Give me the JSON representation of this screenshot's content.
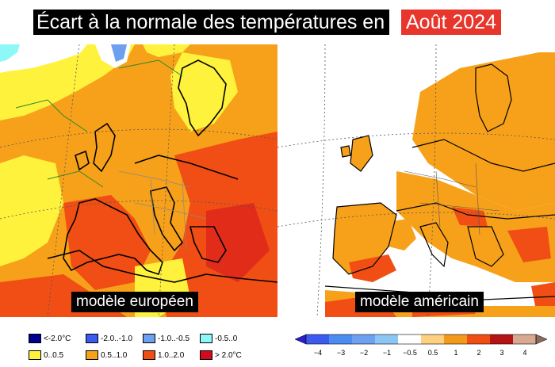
{
  "title": {
    "main": "Écart à la normale des températures en",
    "month": "Août 2024"
  },
  "maps": {
    "european": {
      "label": "modèle européen"
    },
    "american": {
      "label": "modèle américain"
    }
  },
  "colors": {
    "cold_lt_-2": "#00008c",
    "cold_-2_-1": "#3c5af0",
    "cold_-1_-05": "#6ea0f0",
    "cold_-05_0": "#8ef8f8",
    "warm_0_05": "#fff23c",
    "warm_05_1": "#f7a11a",
    "warm_1_2": "#f04e14",
    "warm_gt_2": "#d20a1e"
  },
  "legend_european": [
    {
      "label": "<-2.0°C",
      "color": "#00008c"
    },
    {
      "label": "-2.0..-1.0",
      "color": "#3c5af0"
    },
    {
      "label": "-1.0..-0.5",
      "color": "#6ea0f0"
    },
    {
      "label": "-0.5..0",
      "color": "#8ef8f8"
    },
    {
      "label": "0..0.5",
      "color": "#fff23c"
    },
    {
      "label": "0.5..1.0",
      "color": "#f7a11a"
    },
    {
      "label": "1.0..2.0",
      "color": "#f04e14"
    },
    {
      "label": "> 2.0°C",
      "color": "#d20a1e"
    }
  ],
  "legend_american": {
    "ticks": [
      "−4",
      "−3",
      "−2",
      "−1",
      "−0.5",
      "0.5",
      "1",
      "2",
      "3",
      "4"
    ],
    "colors": [
      "#2a1fc8",
      "#3c5af0",
      "#4a8cf0",
      "#8cc6f5",
      "#ffffff",
      "#ffd080",
      "#f49a1a",
      "#f04e14",
      "#b41414",
      "#d8a890"
    ]
  }
}
